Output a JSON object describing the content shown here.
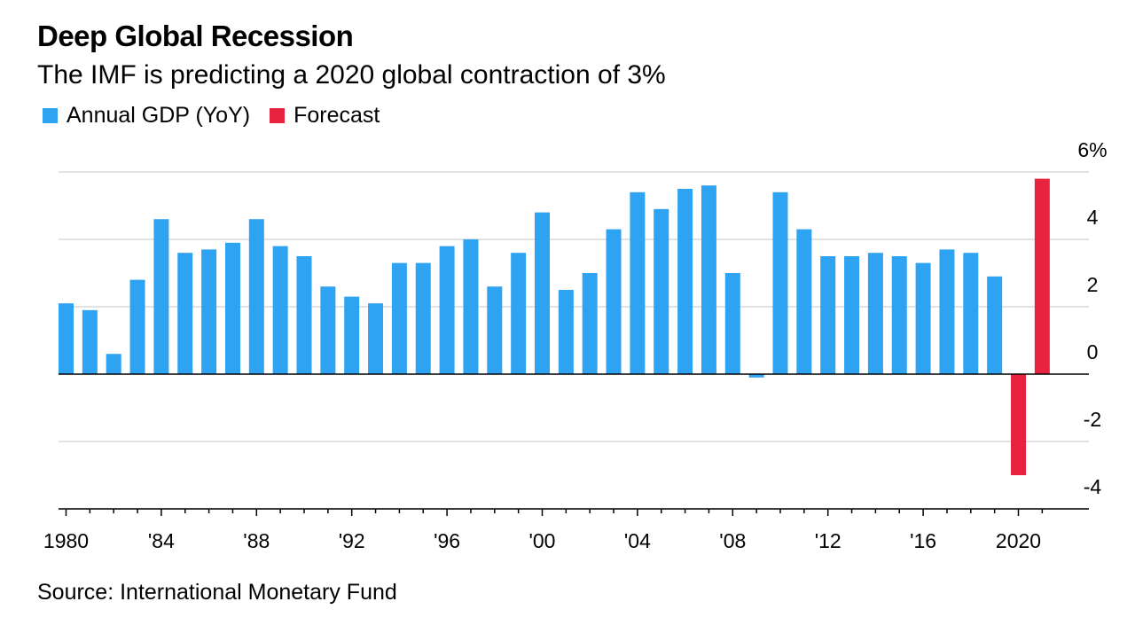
{
  "header": {
    "title": "Deep Global Recession",
    "subtitle": "The IMF is predicting a 2020 global contraction of 3%"
  },
  "legend": {
    "items": [
      {
        "label": "Annual GDP (YoY)",
        "color": "#2ea3f2"
      },
      {
        "label": "Forecast",
        "color": "#e8233f"
      }
    ]
  },
  "footer": {
    "source": "Source: International Monetary Fund"
  },
  "chart_data": {
    "type": "bar",
    "title": "Deep Global Recession",
    "subtitle": "The IMF is predicting a 2020 global contraction of 3%",
    "xlabel": "",
    "ylabel": "",
    "ylim": [
      -4,
      6
    ],
    "grid": true,
    "legend_position": "top-left",
    "y_ticks": [
      {
        "value": 6,
        "label": "6%"
      },
      {
        "value": 4,
        "label": "4"
      },
      {
        "value": 2,
        "label": "2"
      },
      {
        "value": 0,
        "label": "0"
      },
      {
        "value": -2,
        "label": "-2"
      },
      {
        "value": -4,
        "label": "-4"
      }
    ],
    "x_ticks": [
      {
        "year": 1980,
        "label": "1980"
      },
      {
        "year": 1984,
        "label": "'84"
      },
      {
        "year": 1988,
        "label": "'88"
      },
      {
        "year": 1992,
        "label": "'92"
      },
      {
        "year": 1996,
        "label": "'96"
      },
      {
        "year": 2000,
        "label": "'00"
      },
      {
        "year": 2004,
        "label": "'04"
      },
      {
        "year": 2008,
        "label": "'08"
      },
      {
        "year": 2012,
        "label": "'12"
      },
      {
        "year": 2016,
        "label": "'16"
      },
      {
        "year": 2020,
        "label": "2020"
      }
    ],
    "series": [
      {
        "name": "Annual GDP (YoY)",
        "color": "#2ea3f2",
        "points": [
          {
            "x": 1980,
            "y": 2.1
          },
          {
            "x": 1981,
            "y": 1.9
          },
          {
            "x": 1982,
            "y": 0.6
          },
          {
            "x": 1983,
            "y": 2.8
          },
          {
            "x": 1984,
            "y": 4.6
          },
          {
            "x": 1985,
            "y": 3.6
          },
          {
            "x": 1986,
            "y": 3.7
          },
          {
            "x": 1987,
            "y": 3.9
          },
          {
            "x": 1988,
            "y": 4.6
          },
          {
            "x": 1989,
            "y": 3.8
          },
          {
            "x": 1990,
            "y": 3.5
          },
          {
            "x": 1991,
            "y": 2.6
          },
          {
            "x": 1992,
            "y": 2.3
          },
          {
            "x": 1993,
            "y": 2.1
          },
          {
            "x": 1994,
            "y": 3.3
          },
          {
            "x": 1995,
            "y": 3.3
          },
          {
            "x": 1996,
            "y": 3.8
          },
          {
            "x": 1997,
            "y": 4.0
          },
          {
            "x": 1998,
            "y": 2.6
          },
          {
            "x": 1999,
            "y": 3.6
          },
          {
            "x": 2000,
            "y": 4.8
          },
          {
            "x": 2001,
            "y": 2.5
          },
          {
            "x": 2002,
            "y": 3.0
          },
          {
            "x": 2003,
            "y": 4.3
          },
          {
            "x": 2004,
            "y": 5.4
          },
          {
            "x": 2005,
            "y": 4.9
          },
          {
            "x": 2006,
            "y": 5.5
          },
          {
            "x": 2007,
            "y": 5.6
          },
          {
            "x": 2008,
            "y": 3.0
          },
          {
            "x": 2009,
            "y": -0.1
          },
          {
            "x": 2010,
            "y": 5.4
          },
          {
            "x": 2011,
            "y": 4.3
          },
          {
            "x": 2012,
            "y": 3.5
          },
          {
            "x": 2013,
            "y": 3.5
          },
          {
            "x": 2014,
            "y": 3.6
          },
          {
            "x": 2015,
            "y": 3.5
          },
          {
            "x": 2016,
            "y": 3.3
          },
          {
            "x": 2017,
            "y": 3.7
          },
          {
            "x": 2018,
            "y": 3.6
          },
          {
            "x": 2019,
            "y": 2.9
          }
        ]
      },
      {
        "name": "Forecast",
        "color": "#e8233f",
        "points": [
          {
            "x": 2020,
            "y": -3.0
          },
          {
            "x": 2021,
            "y": 5.8
          }
        ]
      }
    ]
  }
}
